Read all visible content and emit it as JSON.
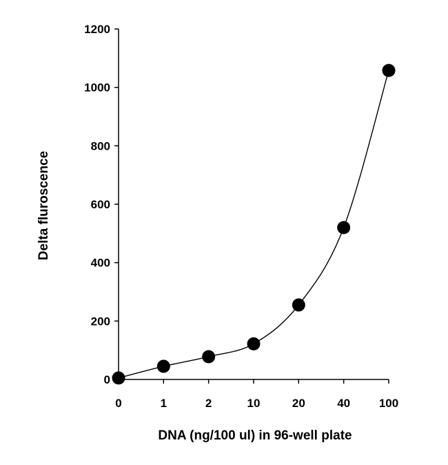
{
  "chart_data": {
    "type": "line",
    "title": "",
    "xlabel": "DNA (ng/100 ul) in 96-well plate",
    "ylabel": "Delta fluroscence",
    "categories": [
      "0",
      "1",
      "2",
      "10",
      "20",
      "40",
      "100"
    ],
    "series": [
      {
        "values": [
          5,
          45,
          78,
          122,
          255,
          520,
          1058
        ]
      }
    ],
    "ylim": [
      0,
      1200
    ],
    "yticks": [
      "0",
      "200",
      "400",
      "600",
      "800",
      "1000",
      "1200"
    ],
    "grid": false,
    "legend": "none",
    "marker_color": "#000000",
    "line_color": "#000000"
  }
}
